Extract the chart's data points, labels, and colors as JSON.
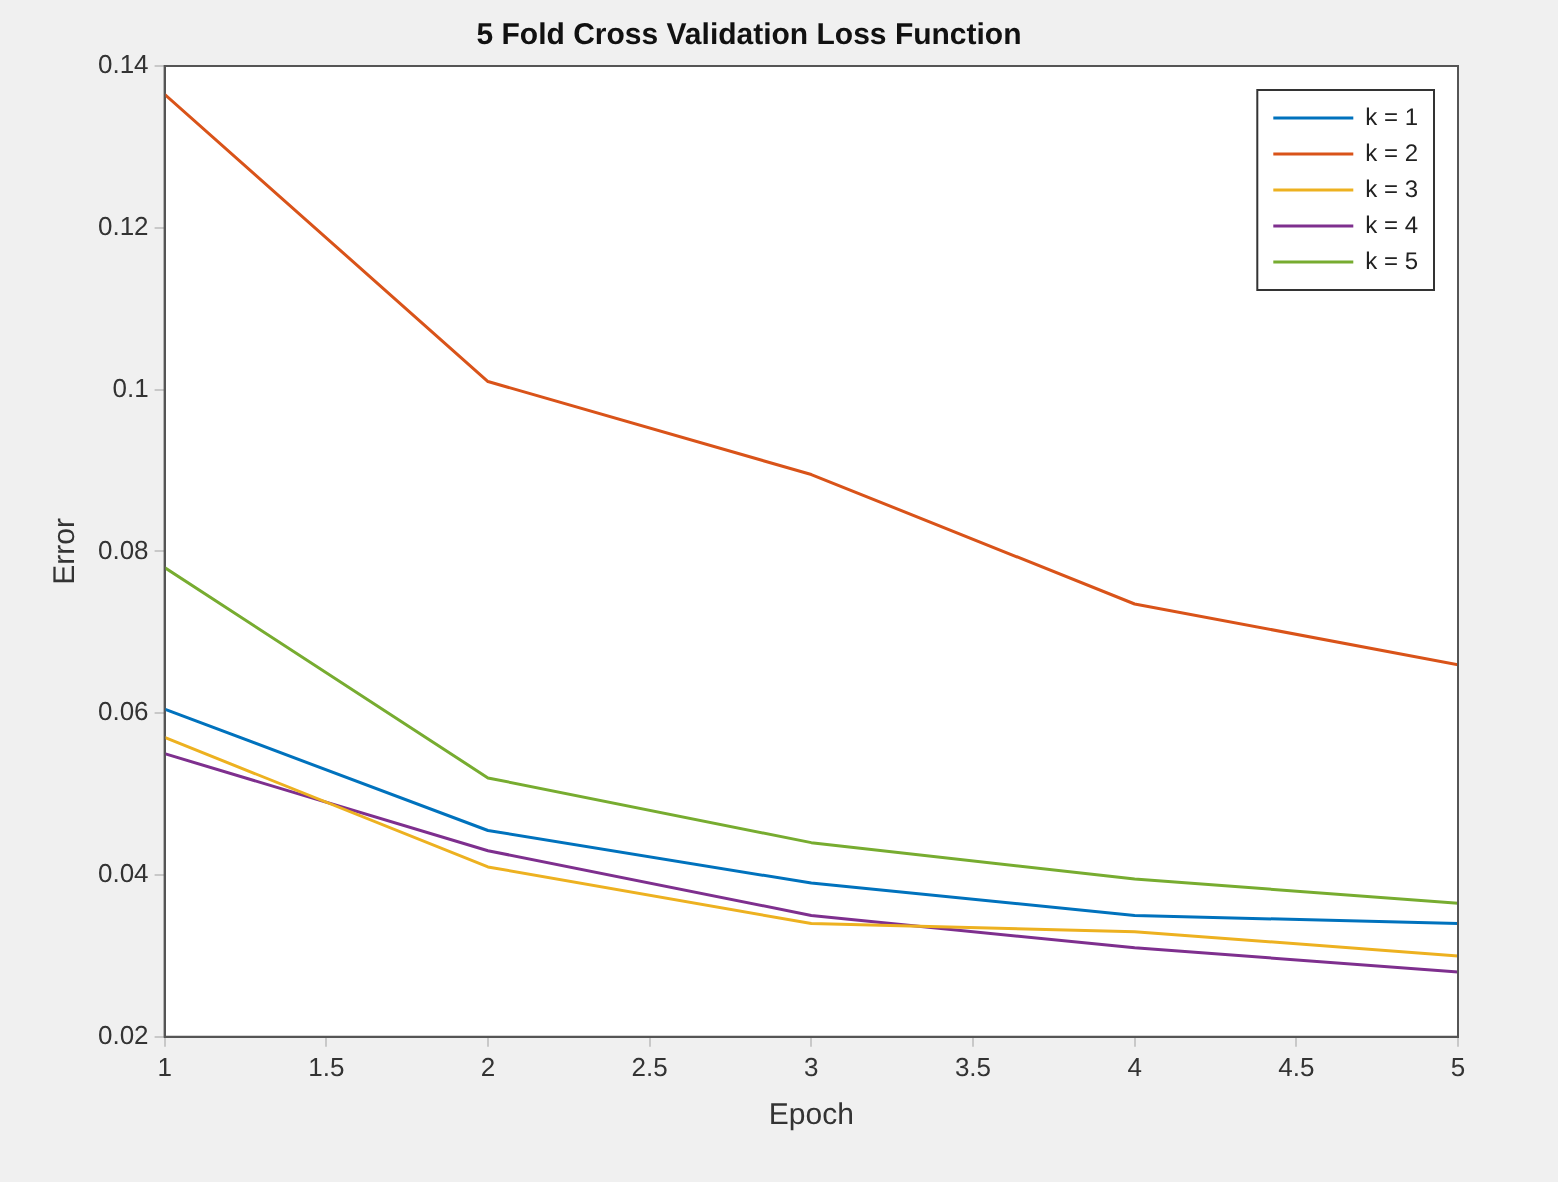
{
  "chart_data": {
    "type": "line",
    "title": "5 Fold Cross Validation Loss Function",
    "xlabel": "Epoch",
    "ylabel": "Error",
    "x": [
      1,
      2,
      3,
      4,
      5
    ],
    "xlim": [
      1,
      5
    ],
    "xticks": [
      1,
      1.5,
      2,
      2.5,
      3,
      3.5,
      4,
      4.5,
      5
    ],
    "ylim": [
      0.02,
      0.14
    ],
    "yticks": [
      0.02,
      0.04,
      0.06,
      0.08,
      0.1,
      0.12,
      0.14
    ],
    "grid": false,
    "legend": "top right",
    "marker": "none",
    "line_style": "solid",
    "series": [
      {
        "name": "k = 1",
        "color": "#0072bd",
        "values": [
          0.0605,
          0.0455,
          0.039,
          0.035,
          0.034
        ]
      },
      {
        "name": "k = 2",
        "color": "#d95319",
        "values": [
          0.1365,
          0.101,
          0.0895,
          0.0735,
          0.066
        ]
      },
      {
        "name": "k = 3",
        "color": "#edb120",
        "values": [
          0.057,
          0.041,
          0.034,
          0.033,
          0.03
        ]
      },
      {
        "name": "k = 4",
        "color": "#7e2f8e",
        "values": [
          0.055,
          0.043,
          0.035,
          0.031,
          0.028
        ]
      },
      {
        "name": "k = 5",
        "color": "#77ac30",
        "values": [
          0.078,
          0.052,
          0.044,
          0.0395,
          0.0365
        ]
      }
    ]
  }
}
